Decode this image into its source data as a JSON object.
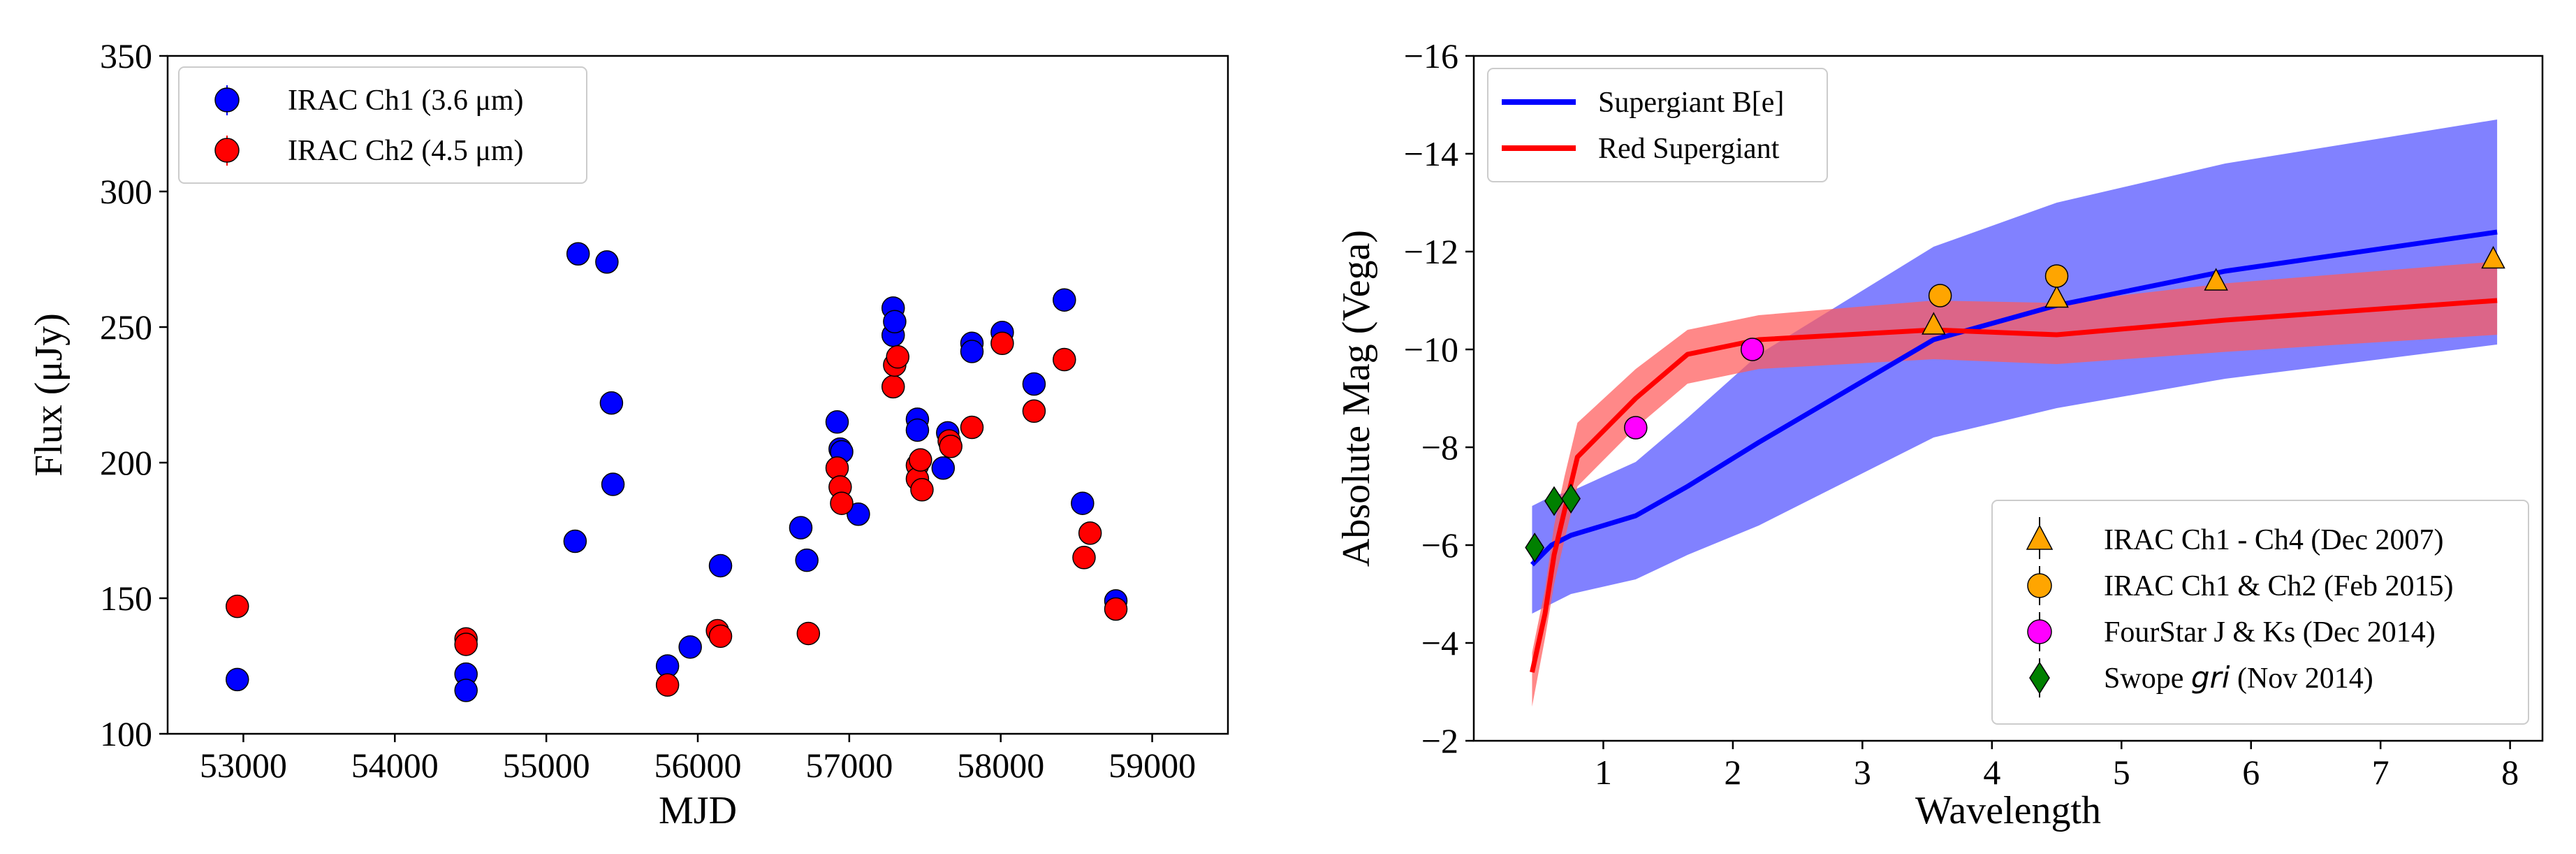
{
  "chart_data": [
    {
      "type": "scatter",
      "title": "",
      "xlabel": "MJD",
      "ylabel": "Flux (μJy)",
      "xlim": [
        52500,
        59500
      ],
      "ylim": [
        100,
        350
      ],
      "xticks": [
        53000,
        54000,
        55000,
        56000,
        57000,
        58000,
        59000
      ],
      "yticks": [
        100,
        150,
        200,
        250,
        300,
        350
      ],
      "xtick_labels": [
        "53000",
        "54000",
        "55000",
        "56000",
        "57000",
        "58000",
        "59000"
      ],
      "ytick_labels": [
        "100",
        "150",
        "200",
        "250",
        "300",
        "350"
      ],
      "legend_position": "top-left",
      "series": [
        {
          "name": "IRAC Ch1 (3.6 μm)",
          "color": "#0000ff",
          "points": [
            [
              52960,
              120
            ],
            [
              54470,
              122
            ],
            [
              54470,
              116
            ],
            [
              55190,
              171
            ],
            [
              55210,
              277
            ],
            [
              55400,
              274
            ],
            [
              55430,
              222
            ],
            [
              55440,
              192
            ],
            [
              55800,
              125
            ],
            [
              55950,
              132
            ],
            [
              56150,
              162
            ],
            [
              56680,
              176
            ],
            [
              56720,
              164
            ],
            [
              56920,
              215
            ],
            [
              56940,
              205
            ],
            [
              56950,
              204
            ],
            [
              57060,
              181
            ],
            [
              57290,
              257
            ],
            [
              57290,
              247
            ],
            [
              57300,
              252
            ],
            [
              57450,
              216
            ],
            [
              57450,
              212
            ],
            [
              57620,
              198
            ],
            [
              57650,
              211
            ],
            [
              57810,
              244
            ],
            [
              57810,
              241
            ],
            [
              58010,
              248
            ],
            [
              58220,
              229
            ],
            [
              58420,
              260
            ],
            [
              58540,
              185
            ],
            [
              58760,
              149
            ]
          ]
        },
        {
          "name": "IRAC Ch2 (4.5 μm)",
          "color": "#ff0000",
          "points": [
            [
              52960,
              147
            ],
            [
              54470,
              135
            ],
            [
              54470,
              133
            ],
            [
              55800,
              118
            ],
            [
              56130,
              138
            ],
            [
              56150,
              136
            ],
            [
              56730,
              137
            ],
            [
              56920,
              198
            ],
            [
              56940,
              191
            ],
            [
              56950,
              185
            ],
            [
              57290,
              228
            ],
            [
              57300,
              236
            ],
            [
              57320,
              239
            ],
            [
              57450,
              199
            ],
            [
              57450,
              194
            ],
            [
              57470,
              201
            ],
            [
              57480,
              190
            ],
            [
              57660,
              208
            ],
            [
              57670,
              206
            ],
            [
              57810,
              213
            ],
            [
              58010,
              244
            ],
            [
              58220,
              219
            ],
            [
              58420,
              238
            ],
            [
              58550,
              165
            ],
            [
              58590,
              174
            ],
            [
              58760,
              146
            ]
          ]
        }
      ]
    },
    {
      "type": "line",
      "title": "",
      "xlabel": "Wavelength",
      "ylabel": "Absolute Mag (Vega)",
      "xlim": [
        0.0,
        8.25
      ],
      "ylim": [
        -2,
        -16
      ],
      "xticks": [
        1,
        2,
        3,
        4,
        5,
        6,
        7,
        8
      ],
      "yticks": [
        -2,
        -4,
        -6,
        -8,
        -10,
        -12,
        -14,
        -16
      ],
      "xtick_labels": [
        "1",
        "2",
        "3",
        "4",
        "5",
        "6",
        "7",
        "8"
      ],
      "ytick_labels": [
        "−2",
        "−4",
        "−6",
        "−8",
        "−10",
        "−12",
        "−14",
        "−16"
      ],
      "legend_lines_position": "top-left",
      "legend_markers_position": "bottom-right",
      "series": [
        {
          "name": "Supergiant B[e]",
          "color": "#0000ff",
          "band_color": "#7a7aff",
          "x": [
            0.45,
            0.6,
            0.75,
            1.25,
            1.65,
            2.2,
            3.55,
            4.5,
            5.8,
            7.9
          ],
          "y": [
            -5.6,
            -6.0,
            -6.2,
            -6.6,
            -7.2,
            -8.1,
            -10.2,
            -10.9,
            -11.6,
            -12.4
          ],
          "band_upper": [
            -6.8,
            -7.0,
            -7.1,
            -7.7,
            -8.6,
            -9.9,
            -12.1,
            -13.0,
            -13.8,
            -14.7
          ],
          "band_lower": [
            -4.6,
            -4.8,
            -5.0,
            -5.3,
            -5.8,
            -6.4,
            -8.2,
            -8.8,
            -9.4,
            -10.1
          ]
        },
        {
          "name": "Red Supergiant",
          "color": "#ff0000",
          "band_color": "#ff5a5a",
          "x": [
            0.45,
            0.55,
            0.62,
            0.7,
            0.8,
            1.25,
            1.65,
            2.2,
            3.55,
            4.5,
            5.8,
            7.9
          ],
          "y": [
            -3.4,
            -4.6,
            -5.8,
            -6.7,
            -7.8,
            -9.0,
            -9.9,
            -10.2,
            -10.4,
            -10.3,
            -10.6,
            -11.0
          ],
          "band_upper": [
            -3.8,
            -5.1,
            -6.4,
            -7.4,
            -8.5,
            -9.6,
            -10.4,
            -10.7,
            -11.0,
            -10.95,
            -11.35,
            -11.8
          ],
          "band_lower": [
            -2.7,
            -4.1,
            -5.2,
            -6.1,
            -7.2,
            -8.4,
            -9.3,
            -9.6,
            -9.8,
            -9.7,
            -9.95,
            -10.3
          ]
        }
      ],
      "observations": [
        {
          "name": "IRAC Ch1 - Ch4 (Dec 2007)",
          "marker": "triangle",
          "color": "#ffa500",
          "points": [
            [
              3.55,
              -10.5
            ],
            [
              4.5,
              -11.05
            ],
            [
              5.73,
              -11.4
            ],
            [
              7.87,
              -11.85
            ]
          ]
        },
        {
          "name": "IRAC Ch1 & Ch2 (Feb 2015)",
          "marker": "circle",
          "color": "#ffa500",
          "points": [
            [
              3.6,
              -11.1
            ],
            [
              4.5,
              -11.5
            ]
          ]
        },
        {
          "name": "FourStar J & Ks (Dec 2014)",
          "marker": "circle",
          "color": "#ff00ff",
          "points": [
            [
              1.25,
              -8.4
            ],
            [
              2.15,
              -10.0
            ]
          ]
        },
        {
          "name": "Swope gri (Nov 2014)",
          "name_prefix": "Swope ",
          "name_italic": "gri",
          "name_suffix": " (Nov 2014)",
          "marker": "diamond",
          "color": "#008000",
          "points": [
            [
              0.47,
              -5.95
            ],
            [
              0.62,
              -6.9
            ],
            [
              0.75,
              -6.95
            ]
          ]
        }
      ]
    }
  ]
}
